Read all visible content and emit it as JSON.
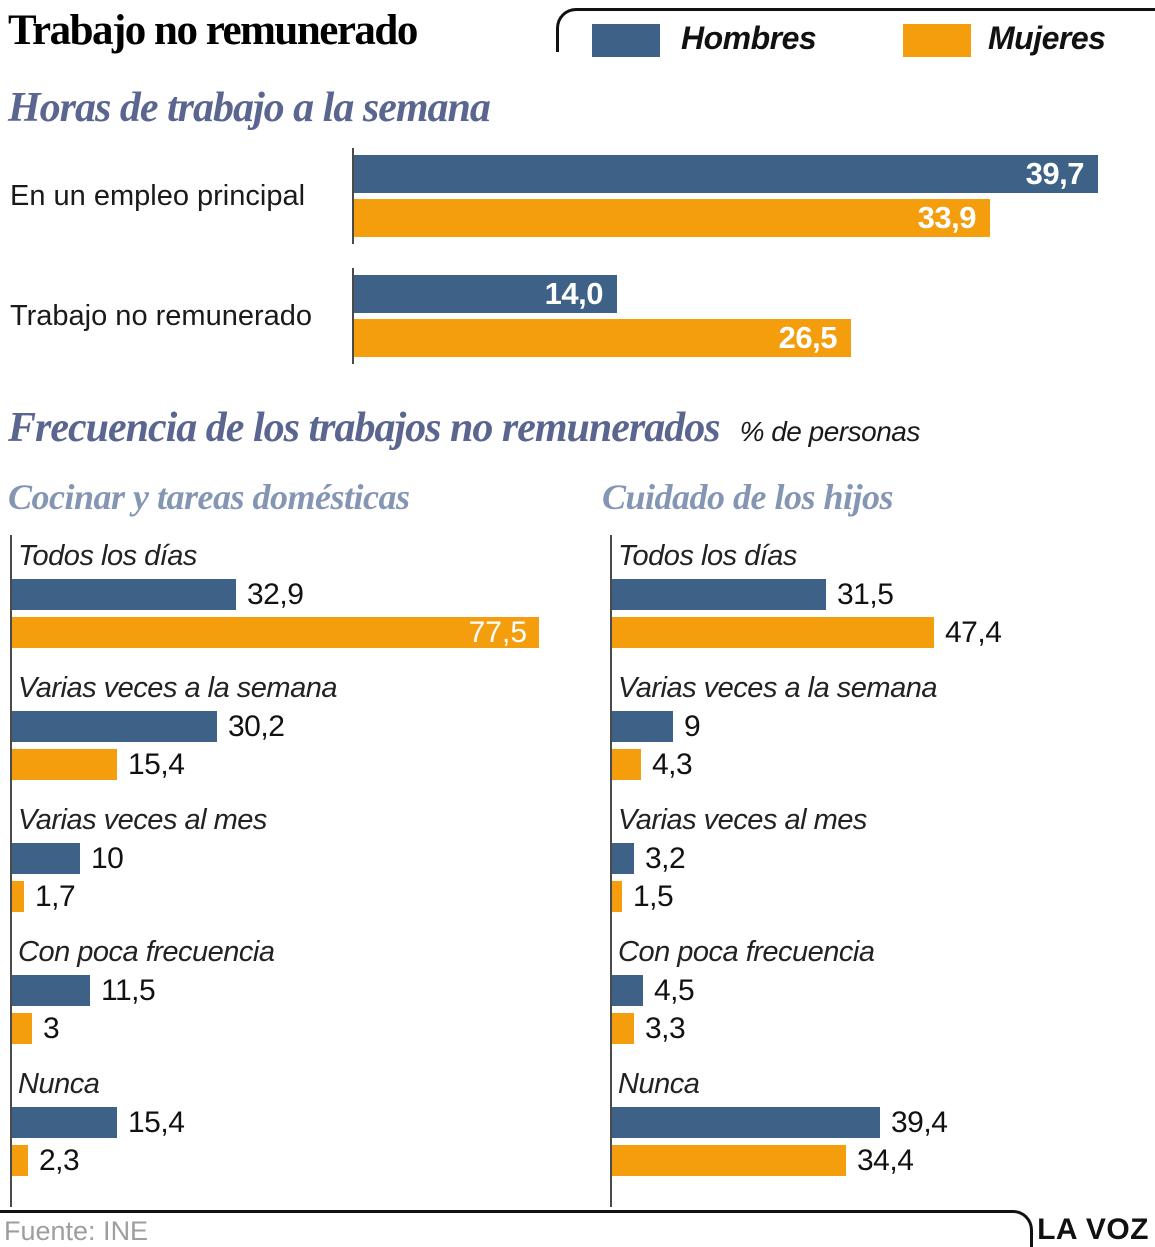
{
  "header": {
    "title": "Trabajo no remunerado",
    "legend": [
      {
        "label": "Hombres",
        "color": "#3e6287"
      },
      {
        "label": "Mujeres",
        "color": "#f49d0d"
      }
    ]
  },
  "sections": {
    "frequency": {
      "heading": "Frecuencia de los trabajos no remunerados",
      "unit_note": "% de personas"
    }
  },
  "footer": {
    "source": "Fuente: INE",
    "brand": "LA VOZ"
  },
  "chart_data": [
    {
      "type": "bar",
      "orientation": "horizontal",
      "title": "Horas de trabajo a la semana",
      "categories": [
        "En un empleo principal",
        "Trabajo no remunerado"
      ],
      "series": [
        {
          "name": "Hombres",
          "values": [
            39.7,
            14.0
          ]
        },
        {
          "name": "Mujeres",
          "values": [
            33.9,
            26.5
          ]
        }
      ],
      "value_labels": [
        [
          "39,7",
          "14,0"
        ],
        [
          "33,9",
          "26,5"
        ]
      ],
      "xlim": [
        0,
        40
      ],
      "grid": false,
      "legend_position": "top",
      "value_label_position": "inside"
    },
    {
      "type": "bar",
      "orientation": "horizontal",
      "title": "Cocinar y tareas domésticas",
      "categories": [
        "Todos los días",
        "Varias veces a la semana",
        "Varias veces al mes",
        "Con poca frecuencia",
        "Nunca"
      ],
      "series": [
        {
          "name": "Hombres",
          "values": [
            32.9,
            30.2,
            10,
            11.5,
            15.4
          ]
        },
        {
          "name": "Mujeres",
          "values": [
            77.5,
            15.4,
            1.7,
            3,
            2.3
          ]
        }
      ],
      "value_labels": [
        [
          "32,9",
          "30,2",
          "10",
          "11,5",
          "15,4"
        ],
        [
          "77,5",
          "15,4",
          "1,7",
          "3",
          "2,3"
        ]
      ],
      "xlim": [
        0,
        78
      ],
      "grid": false,
      "legend_position": "top",
      "value_label_position": "outside"
    },
    {
      "type": "bar",
      "orientation": "horizontal",
      "title": "Cuidado de los hijos",
      "categories": [
        "Todos los días",
        "Varias veces a la semana",
        "Varias veces al mes",
        "Con poca frecuencia",
        "Nunca"
      ],
      "series": [
        {
          "name": "Hombres",
          "values": [
            31.5,
            9,
            3.2,
            4.5,
            39.4
          ]
        },
        {
          "name": "Mujeres",
          "values": [
            47.4,
            4.3,
            1.5,
            3.3,
            34.4
          ]
        }
      ],
      "value_labels": [
        [
          "31,5",
          "9",
          "3,2",
          "4,5",
          "39,4"
        ],
        [
          "47,4",
          "4,3",
          "1,5",
          "3,3",
          "34,4"
        ]
      ],
      "xlim": [
        0,
        78
      ],
      "grid": false,
      "legend_position": "top",
      "value_label_position": "outside"
    }
  ]
}
